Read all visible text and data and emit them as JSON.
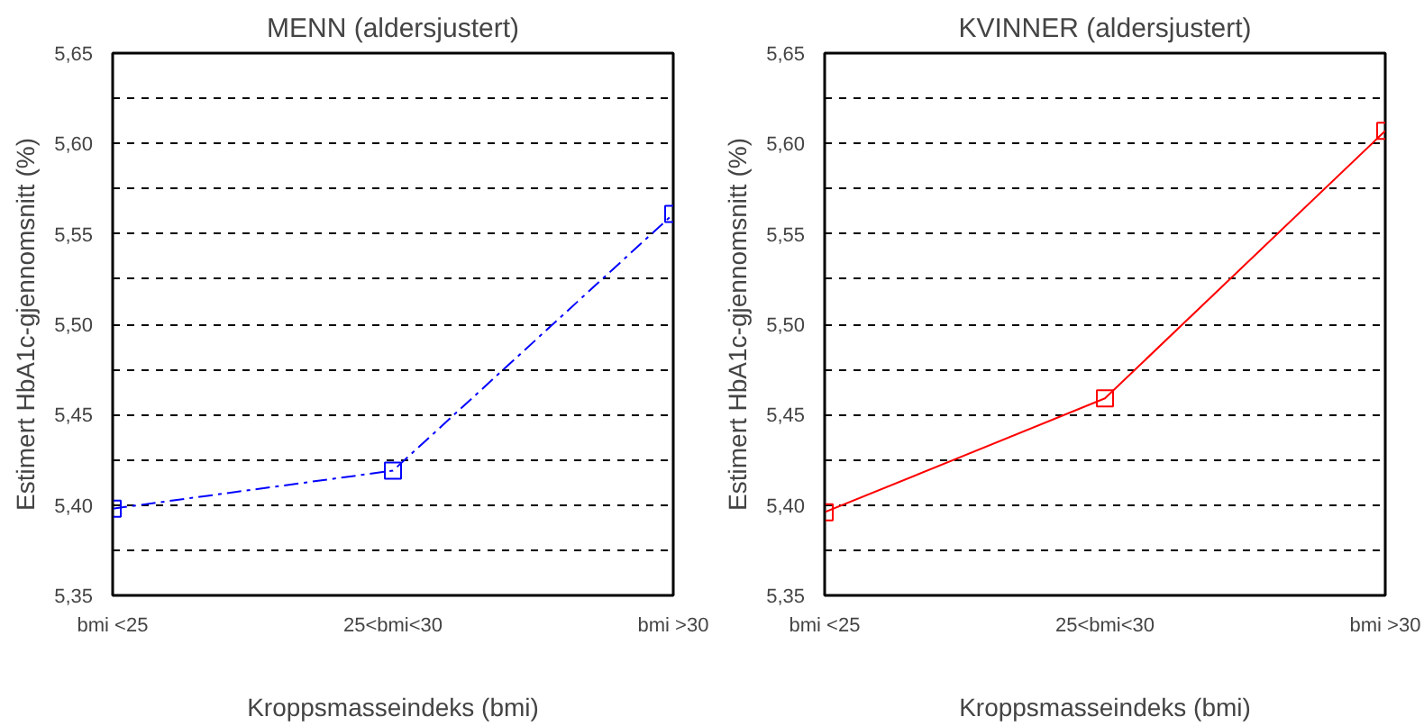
{
  "chart_data": [
    {
      "type": "line",
      "title": "MENN (aldersjustert)",
      "xlabel": "Kroppsmasseindeks (bmi)",
      "ylabel": "Estimert HbA1c-gjennomsnitt (%)",
      "categories": [
        "bmi <25",
        "25<bmi<30",
        "bmi >30"
      ],
      "series": [
        {
          "color": "#0000ff",
          "values": [
            5.398,
            5.419,
            5.561
          ]
        }
      ],
      "ylim": [
        5.35,
        5.65
      ],
      "yticks": [
        {
          "value": 5.35,
          "label": "5,35"
        },
        {
          "value": 5.375,
          "label": null
        },
        {
          "value": 5.4,
          "label": "5,40"
        },
        {
          "value": 5.425,
          "label": null
        },
        {
          "value": 5.45,
          "label": "5,45"
        },
        {
          "value": 5.475,
          "label": null
        },
        {
          "value": 5.5,
          "label": "5,50"
        },
        {
          "value": 5.525,
          "label": null
        },
        {
          "value": 5.55,
          "label": "5,55"
        },
        {
          "value": 5.575,
          "label": null
        },
        {
          "value": 5.6,
          "label": "5,60"
        },
        {
          "value": 5.625,
          "label": null
        },
        {
          "value": 5.65,
          "label": "5,65"
        }
      ],
      "grid": "y",
      "marker": "square",
      "line_style": "dashed"
    },
    {
      "type": "line",
      "title": "KVINNER (aldersjustert)",
      "xlabel": "Kroppsmasseindeks (bmi)",
      "ylabel": "Estimert HbA1c-gjennomsnitt (%)",
      "categories": [
        "bmi <25",
        "25<bmi<30",
        "bmi >30"
      ],
      "series": [
        {
          "color": "#ff0000",
          "values": [
            5.396,
            5.459,
            5.607
          ]
        }
      ],
      "ylim": [
        5.35,
        5.65
      ],
      "yticks": [
        {
          "value": 5.35,
          "label": "5,35"
        },
        {
          "value": 5.375,
          "label": null
        },
        {
          "value": 5.4,
          "label": "5,40"
        },
        {
          "value": 5.425,
          "label": null
        },
        {
          "value": 5.45,
          "label": "5,45"
        },
        {
          "value": 5.475,
          "label": null
        },
        {
          "value": 5.5,
          "label": "5,50"
        },
        {
          "value": 5.525,
          "label": null
        },
        {
          "value": 5.55,
          "label": "5,55"
        },
        {
          "value": 5.575,
          "label": null
        },
        {
          "value": 5.6,
          "label": "5,60"
        },
        {
          "value": 5.625,
          "label": null
        },
        {
          "value": 5.65,
          "label": "5,65"
        }
      ],
      "grid": "y",
      "marker": "square",
      "line_style": "solid"
    }
  ]
}
